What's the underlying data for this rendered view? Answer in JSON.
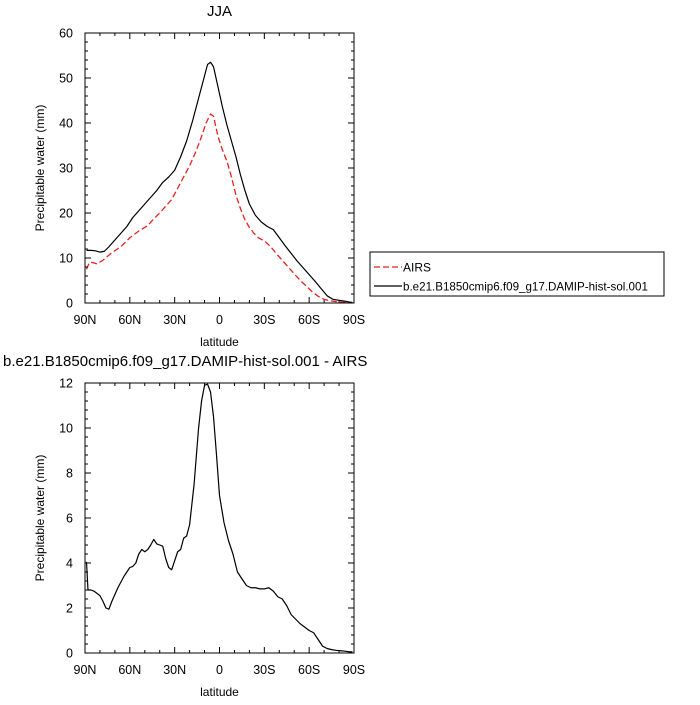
{
  "chart_data": [
    {
      "type": "line",
      "title": "JJA",
      "xlabel": "latitude",
      "ylabel": "Precipitable water (mm)",
      "xlim": [
        90,
        -90
      ],
      "ylim": [
        0,
        60
      ],
      "x_ticks": [
        90,
        60,
        30,
        0,
        -30,
        -60,
        -90
      ],
      "x_tick_labels": [
        "90N",
        "60N",
        "30N",
        "0",
        "30S",
        "60S",
        "90S"
      ],
      "y_ticks": [
        0,
        10,
        20,
        30,
        40,
        50,
        60
      ],
      "y_tick_labels": [
        "0",
        "10",
        "20",
        "30",
        "40",
        "50",
        "60"
      ],
      "legend_position": "right",
      "series": [
        {
          "name": "AIRS",
          "color": "#e8201e",
          "dash": "dashed",
          "x": [
            89,
            87,
            85,
            82,
            78,
            72,
            66,
            60,
            54,
            48,
            44,
            40,
            36,
            32,
            28,
            24,
            20,
            16,
            12,
            9,
            6,
            4,
            1,
            -2,
            -5,
            -8,
            -11,
            -14,
            -17,
            -20,
            -23,
            -26,
            -30,
            -34,
            -38,
            -42,
            -46,
            -50,
            -54,
            -58,
            -62,
            -66,
            -70,
            -74,
            -78,
            -82,
            -86,
            -89
          ],
          "values": [
            7.5,
            9,
            9,
            8.7,
            9.5,
            11.2,
            12.5,
            14.5,
            16,
            17.2,
            18.7,
            20,
            21.5,
            23,
            25.5,
            28,
            30.5,
            33.5,
            37,
            40,
            42,
            41.5,
            37,
            34,
            31.5,
            28,
            24,
            21,
            18.5,
            16.8,
            15.5,
            14.5,
            13.8,
            12.6,
            11,
            9.5,
            8,
            6.5,
            5,
            3.8,
            2.5,
            1.5,
            0.8,
            0.5,
            0.3,
            0.2,
            0.1,
            0.1
          ]
        },
        {
          "name": "b.e21.B1850cmip6.f09_g17.DAMIP-hist-sol.001",
          "color": "#000000",
          "dash": "solid",
          "x": [
            89,
            86,
            83,
            80,
            77,
            74,
            70,
            66,
            62,
            58,
            54,
            50,
            46,
            42,
            38,
            34,
            30,
            26,
            22,
            18,
            14,
            10,
            8,
            6,
            4,
            1,
            -2,
            -5,
            -8,
            -11,
            -14,
            -17,
            -20,
            -24,
            -28,
            -32,
            -36,
            -40,
            -44,
            -48,
            -52,
            -56,
            -60,
            -64,
            -68,
            -72,
            -76,
            -80,
            -84,
            -87,
            -89
          ],
          "values": [
            11.7,
            11.7,
            11.6,
            11.3,
            11.5,
            12.5,
            14,
            15.5,
            17,
            19,
            20.5,
            22,
            23.5,
            25,
            26.8,
            28,
            29.5,
            32.5,
            36,
            40.5,
            45.5,
            50.5,
            53,
            53.5,
            52.5,
            48,
            43.5,
            39.5,
            36,
            32.5,
            28.5,
            25,
            22,
            19.5,
            18,
            17,
            16.3,
            14.5,
            12.7,
            11,
            9.3,
            7.8,
            6.3,
            4.8,
            3.2,
            1.6,
            0.8,
            0.6,
            0.4,
            0.2,
            0.1
          ]
        }
      ]
    },
    {
      "type": "line",
      "title": "b.e21.B1850cmip6.f09_g17.DAMIP-hist-sol.001 - AIRS",
      "xlabel": "latitude",
      "ylabel": "Precipitable water (mm)",
      "xlim": [
        90,
        -90
      ],
      "ylim": [
        0,
        12
      ],
      "x_ticks": [
        90,
        60,
        30,
        0,
        -30,
        -60,
        -90
      ],
      "x_tick_labels": [
        "90N",
        "60N",
        "30N",
        "0",
        "30S",
        "60S",
        "90S"
      ],
      "y_ticks": [
        0,
        2,
        4,
        6,
        8,
        10,
        12
      ],
      "y_tick_labels": [
        "0",
        "2",
        "4",
        "6",
        "8",
        "10",
        "12"
      ],
      "series": [
        {
          "color": "#000000",
          "dash": "solid",
          "x": [
            89,
            88,
            86,
            84,
            80,
            78,
            76,
            74,
            72,
            68,
            64,
            60,
            58,
            56,
            54,
            52,
            50,
            48,
            46,
            44,
            42,
            40,
            38,
            36,
            34,
            32,
            30,
            28,
            26,
            24,
            22,
            20,
            17,
            14,
            12,
            10,
            8,
            6,
            4,
            2,
            0,
            -3,
            -6,
            -9,
            -12,
            -15,
            -18,
            -21,
            -24,
            -27,
            -30,
            -33,
            -36,
            -39,
            -42,
            -45,
            -48,
            -51,
            -54,
            -57,
            -60,
            -63,
            -66,
            -69,
            -72,
            -75,
            -78,
            -81,
            -84,
            -87,
            -89
          ],
          "values": [
            4.05,
            2.8,
            2.8,
            2.75,
            2.55,
            2.3,
            2.0,
            1.95,
            2.3,
            2.9,
            3.4,
            3.8,
            3.85,
            4.0,
            4.4,
            4.6,
            4.5,
            4.6,
            4.8,
            5.05,
            4.85,
            4.8,
            4.75,
            4.2,
            3.8,
            3.7,
            4.1,
            4.5,
            4.6,
            5.1,
            5.2,
            5.7,
            7.5,
            10.0,
            11.2,
            11.9,
            11.95,
            11.6,
            10.5,
            8.8,
            7.0,
            5.8,
            5.0,
            4.4,
            3.6,
            3.3,
            3.0,
            2.9,
            2.9,
            2.85,
            2.85,
            2.9,
            2.75,
            2.5,
            2.4,
            2.1,
            1.7,
            1.5,
            1.3,
            1.15,
            1.0,
            0.9,
            0.6,
            0.3,
            0.2,
            0.15,
            0.12,
            0.1,
            0.08,
            0.05,
            0.05
          ]
        }
      ]
    }
  ]
}
